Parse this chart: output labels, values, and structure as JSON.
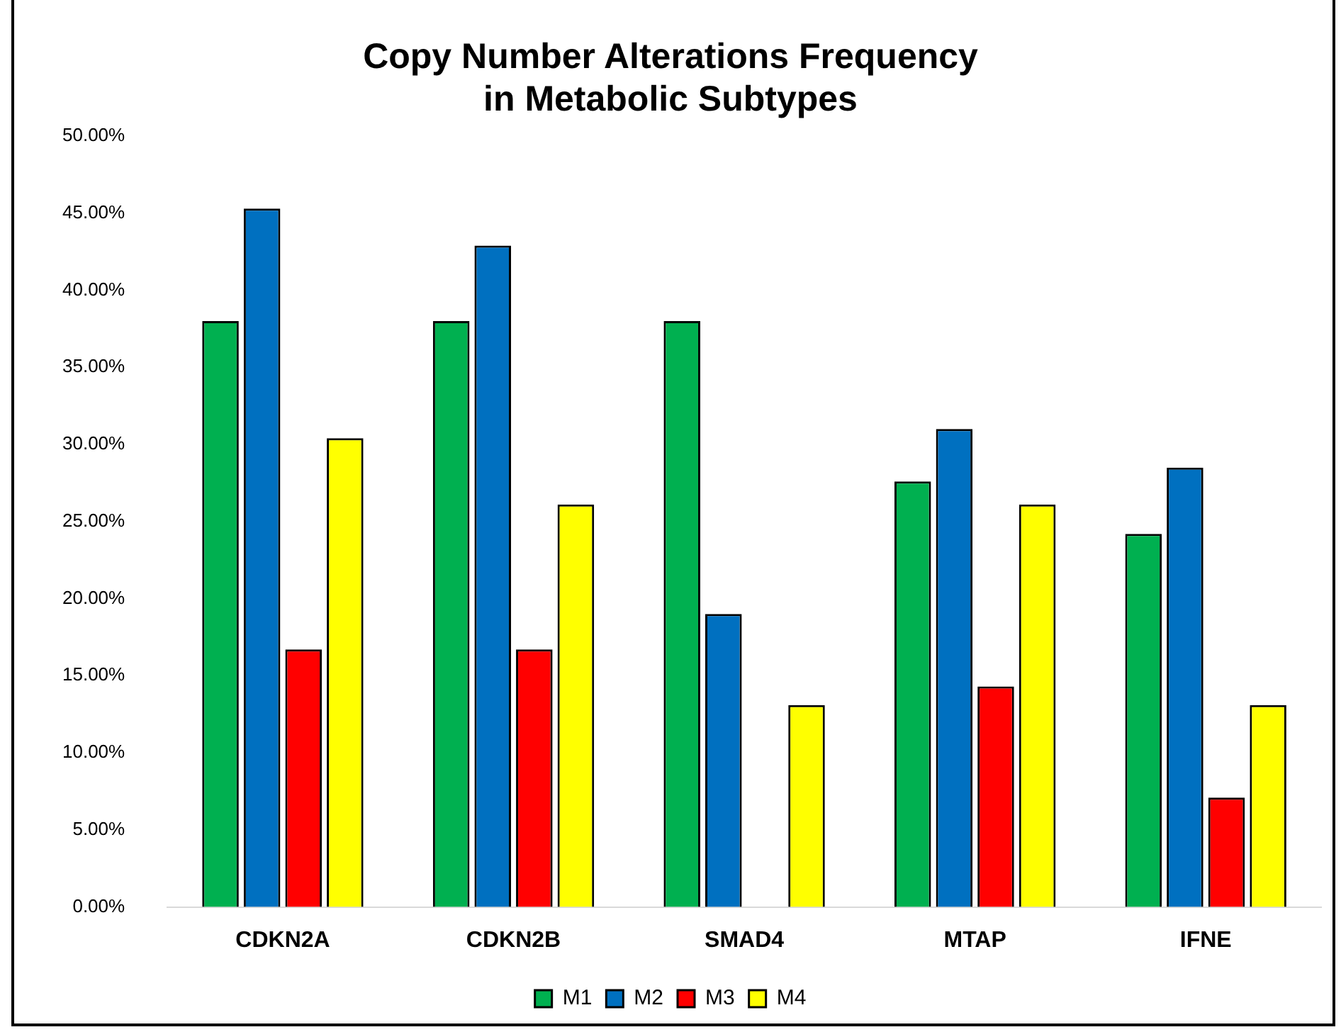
{
  "chart_data": {
    "type": "bar",
    "title": "Copy Number Alterations Frequency\nin Metabolic Subtypes",
    "categories": [
      "CDKN2A",
      "CDKN2B",
      "SMAD4",
      "MTAP",
      "IFNE"
    ],
    "series": [
      {
        "name": "M1",
        "color": "#00b050",
        "values": [
          38.0,
          38.0,
          38.0,
          27.6,
          24.2
        ]
      },
      {
        "name": "M2",
        "color": "#0070c0",
        "values": [
          45.3,
          42.9,
          19.0,
          31.0,
          28.5
        ]
      },
      {
        "name": "M3",
        "color": "#ff0000",
        "values": [
          16.7,
          16.7,
          0,
          14.3,
          7.1
        ]
      },
      {
        "name": "M4",
        "color": "#ffff00",
        "values": [
          30.4,
          26.1,
          13.1,
          26.1,
          13.1
        ]
      }
    ],
    "ylim": [
      0,
      50
    ],
    "yticks": [
      {
        "value": 0,
        "label": "0.00%"
      },
      {
        "value": 5,
        "label": "5.00%"
      },
      {
        "value": 10,
        "label": "10.00%"
      },
      {
        "value": 15,
        "label": "15.00%"
      },
      {
        "value": 20,
        "label": "20.00%"
      },
      {
        "value": 25,
        "label": "25.00%"
      },
      {
        "value": 30,
        "label": "30.00%"
      },
      {
        "value": 35,
        "label": "35.00%"
      },
      {
        "value": 40,
        "label": "40.00%"
      },
      {
        "value": 45,
        "label": "45.00%"
      },
      {
        "value": 50,
        "label": "50.00%"
      }
    ],
    "grid": false,
    "legend": "bottom"
  }
}
